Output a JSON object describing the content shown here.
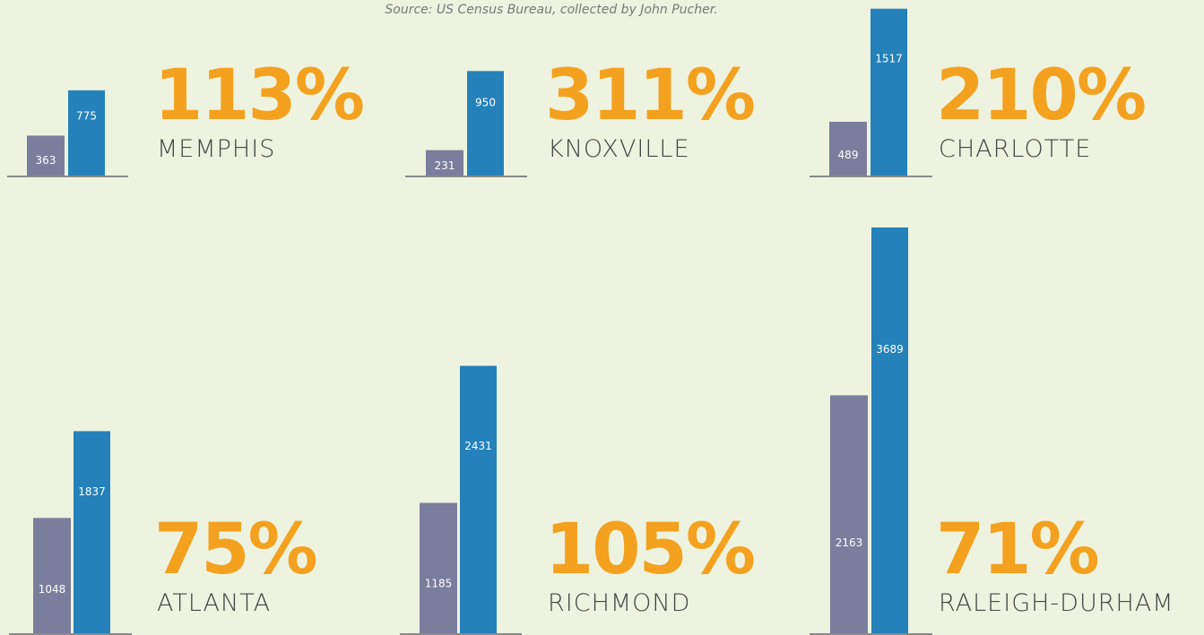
{
  "source": "Source: US Census Bureau, collected by John Pucher.",
  "chart_data": [
    {
      "type": "bar",
      "title": "MEMPHIS",
      "annotation": "113%",
      "categories": [
        null,
        null
      ],
      "values": [
        363,
        775
      ],
      "colors": [
        "#7b7d9c",
        "#2481ba"
      ]
    },
    {
      "type": "bar",
      "title": "KNOXVILLE",
      "annotation": "311%",
      "categories": [
        null,
        null
      ],
      "values": [
        231,
        950
      ],
      "colors": [
        "#7b7d9c",
        "#2481ba"
      ]
    },
    {
      "type": "bar",
      "title": "CHARLOTTE",
      "annotation": "210%",
      "categories": [
        null,
        null
      ],
      "values": [
        489,
        1517
      ],
      "colors": [
        "#7b7d9c",
        "#2481ba"
      ]
    },
    {
      "type": "bar",
      "title": "ATLANTA",
      "annotation": "75%",
      "categories": [
        null,
        null
      ],
      "values": [
        1048,
        1837
      ],
      "colors": [
        "#7b7d9c",
        "#2481ba"
      ]
    },
    {
      "type": "bar",
      "title": "RICHMOND",
      "annotation": "105%",
      "categories": [
        null,
        null
      ],
      "values": [
        1185,
        2431
      ],
      "colors": [
        "#7b7d9c",
        "#2481ba"
      ]
    },
    {
      "type": "bar",
      "title": "RALEIGH-DURHAM",
      "annotation": "71%",
      "categories": [
        null,
        null
      ],
      "values": [
        2163,
        3689
      ],
      "colors": [
        "#7b7d9c",
        "#2481ba"
      ]
    }
  ]
}
